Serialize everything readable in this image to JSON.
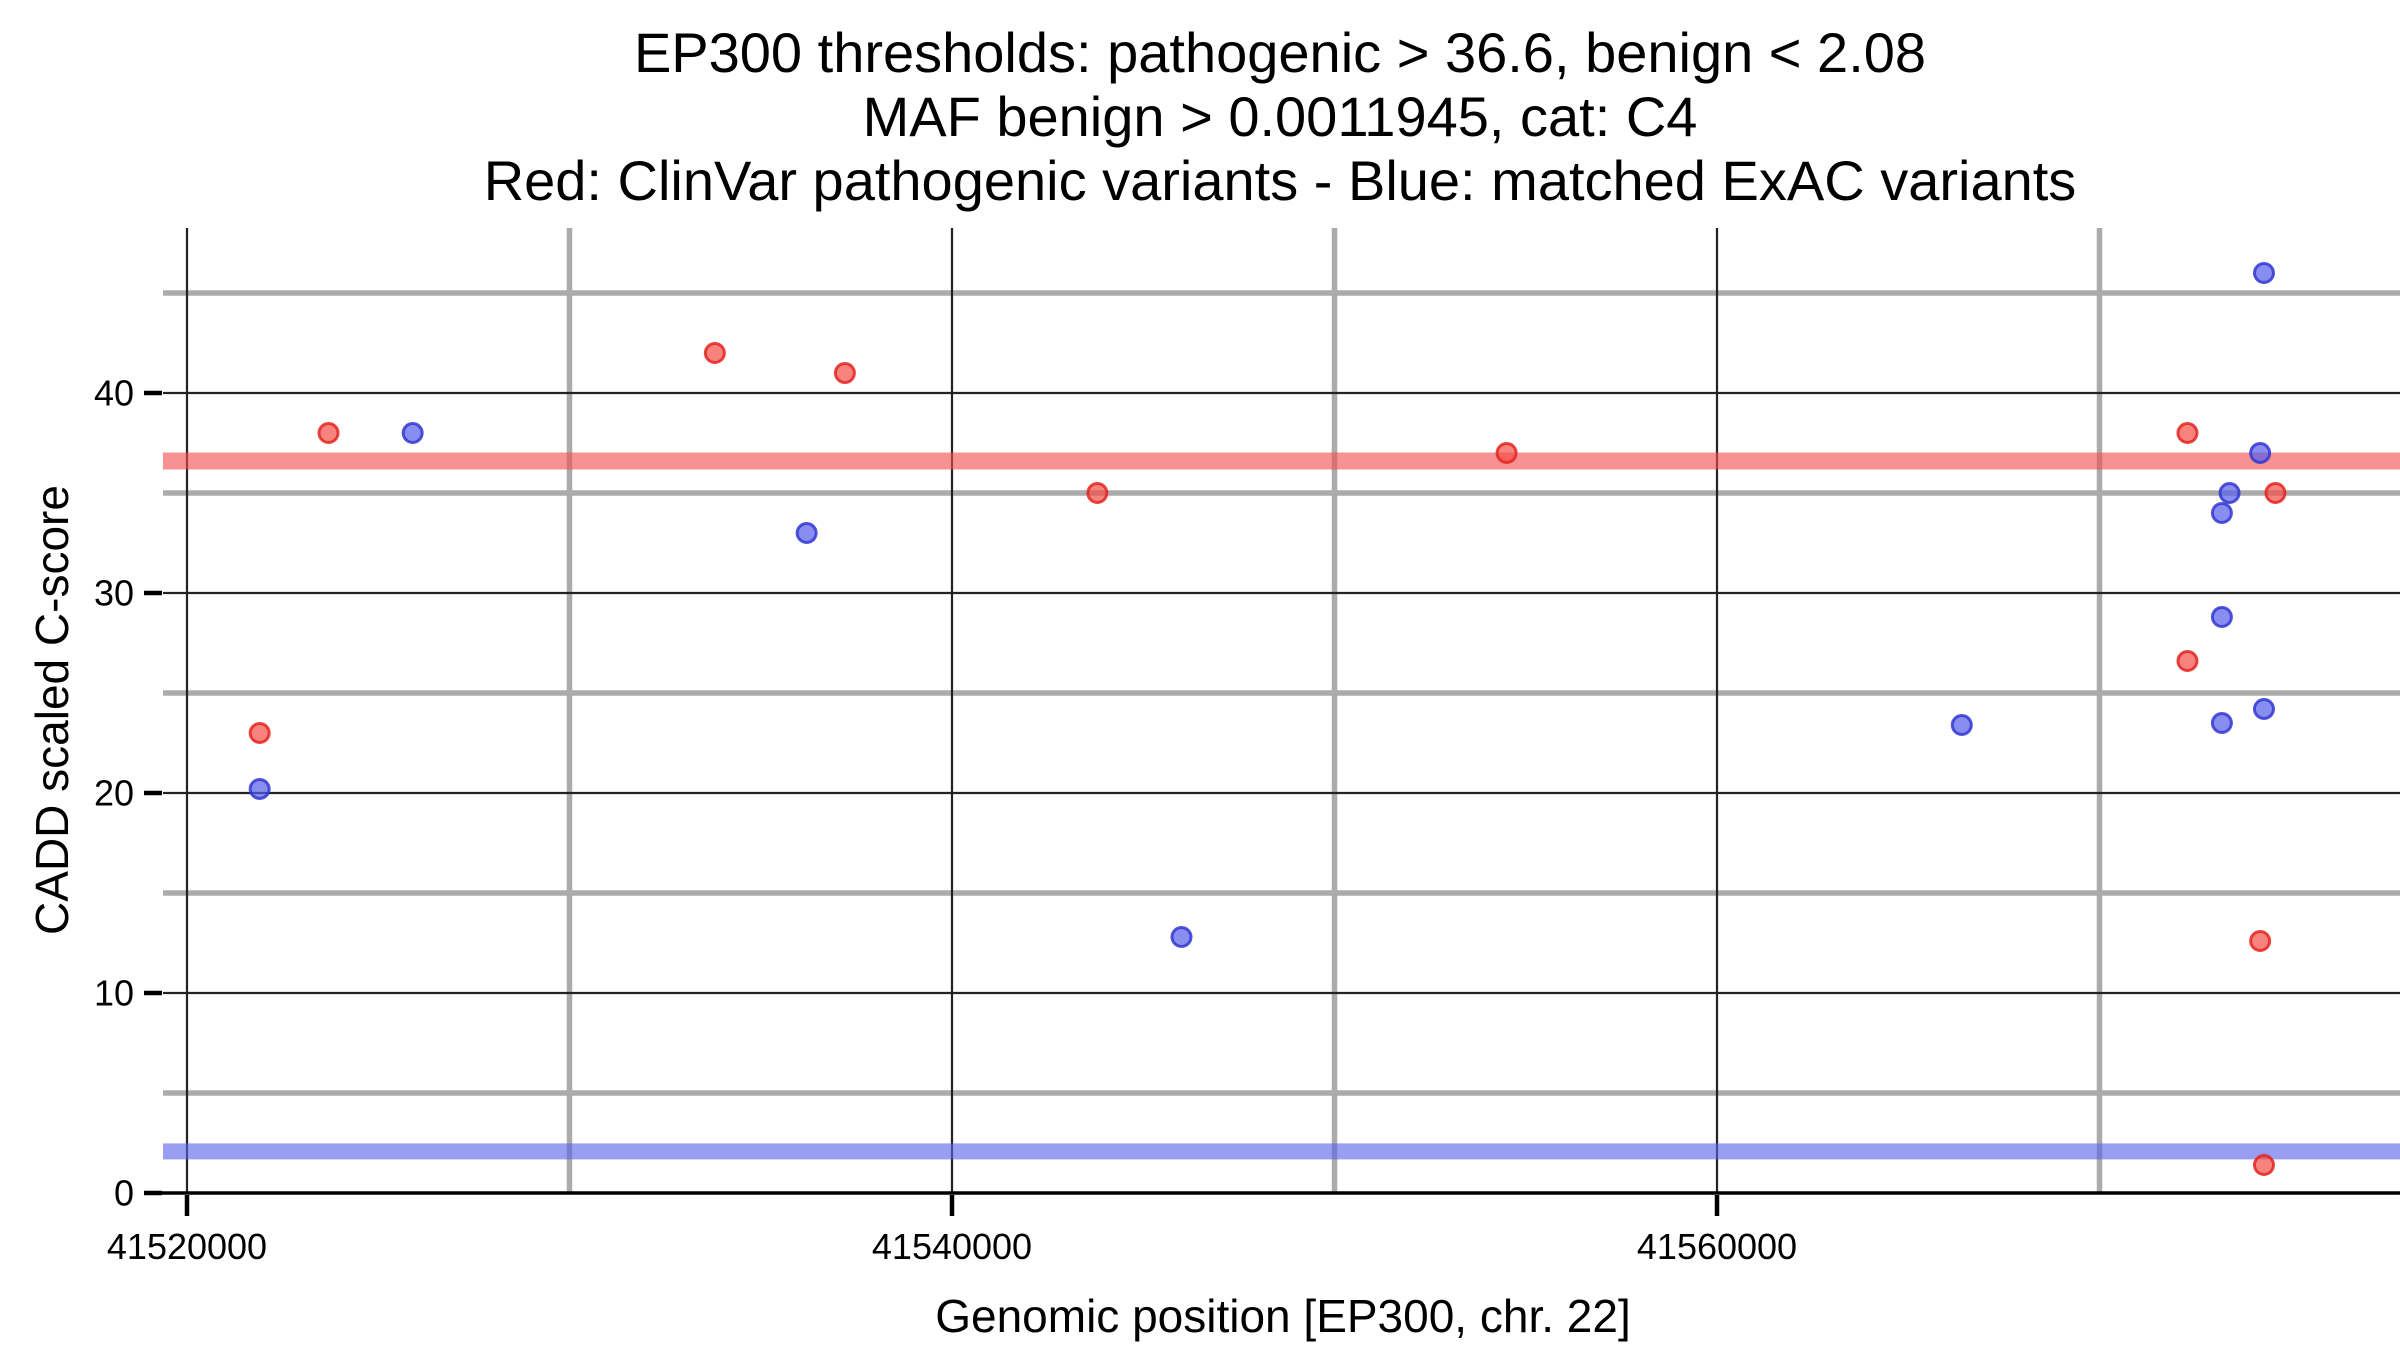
{
  "title": {
    "line1": "EP300 thresholds: pathogenic > 36.6, benign < 2.08",
    "line2": "MAF benign > 0.0011945, cat: C4",
    "line3": "Red: ClinVar pathogenic variants - Blue: matched ExAC variants"
  },
  "colors": {
    "background": "#ffffff",
    "grid_major": "#222222",
    "grid_minor": "#ABABAB",
    "axis_line": "#000000",
    "pathogenic_band": "rgba(244,78,78,0.62)",
    "benign_band": "rgba(92,98,236,0.62)",
    "red_point_fill": "rgba(243,78,72,0.70)",
    "red_point_stroke": "rgba(228,38,34,0.85)",
    "blue_point_fill": "rgba(86,92,233,0.70)",
    "blue_point_stroke": "rgba(50,55,210,0.85)"
  },
  "chart_data": {
    "type": "scatter",
    "title": "EP300 thresholds: pathogenic > 36.6, benign < 2.08 | MAF benign > 0.0011945, cat: C4 | Red: ClinVar pathogenic variants - Blue: matched ExAC variants",
    "xlabel": "Genomic position [EP300, chr. 22]",
    "ylabel": "CADD scaled C-score",
    "gene": "EP300",
    "chromosome": "chr. 22",
    "category": "C4",
    "thresholds": {
      "pathogenic_gt": 36.6,
      "benign_lt": 2.08,
      "maf_benign_gt": 0.0011945
    },
    "xlim": [
      41519373,
      41577857
    ],
    "ylim": [
      0,
      48.25
    ],
    "x_ticks": [
      41520000,
      41540000,
      41560000
    ],
    "x_tick_labels": [
      "41520000",
      "41540000",
      "41560000"
    ],
    "x_minor_ticks": [
      41530000,
      41550000,
      41570000
    ],
    "y_ticks": [
      0,
      10,
      20,
      30,
      40
    ],
    "y_tick_labels": [
      "0",
      "10",
      "20",
      "30",
      "40"
    ],
    "y_minor_ticks": [
      5,
      15,
      25,
      35,
      45
    ],
    "grid": true,
    "legend_position": "none",
    "bands": [
      {
        "name": "pathogenic-threshold-band",
        "y": 36.6,
        "color_key": "pathogenic_band"
      },
      {
        "name": "benign-threshold-band",
        "y": 2.08,
        "color_key": "benign_band"
      }
    ],
    "series": [
      {
        "name": "ClinVar pathogenic variants",
        "color_key": "red",
        "points": [
          [
            41521900,
            23.0
          ],
          [
            41523700,
            38.0
          ],
          [
            41533800,
            42.0
          ],
          [
            41537200,
            41.0
          ],
          [
            41543800,
            35.0
          ],
          [
            41554500,
            37.0
          ],
          [
            41572300,
            38.0
          ],
          [
            41572300,
            26.6
          ],
          [
            41574600,
            35.0
          ],
          [
            41574200,
            12.6
          ],
          [
            41574300,
            1.4
          ]
        ]
      },
      {
        "name": "matched ExAC variants",
        "color_key": "blue",
        "points": [
          [
            41521900,
            20.2
          ],
          [
            41525900,
            38.0
          ],
          [
            41536200,
            33.0
          ],
          [
            41546000,
            12.8
          ],
          [
            41566400,
            23.4
          ],
          [
            41574300,
            46.0
          ],
          [
            41574200,
            37.0
          ],
          [
            41573400,
            35.0
          ],
          [
            41573200,
            34.0
          ],
          [
            41573200,
            28.8
          ],
          [
            41574300,
            24.2
          ],
          [
            41573200,
            23.5
          ]
        ]
      }
    ]
  }
}
